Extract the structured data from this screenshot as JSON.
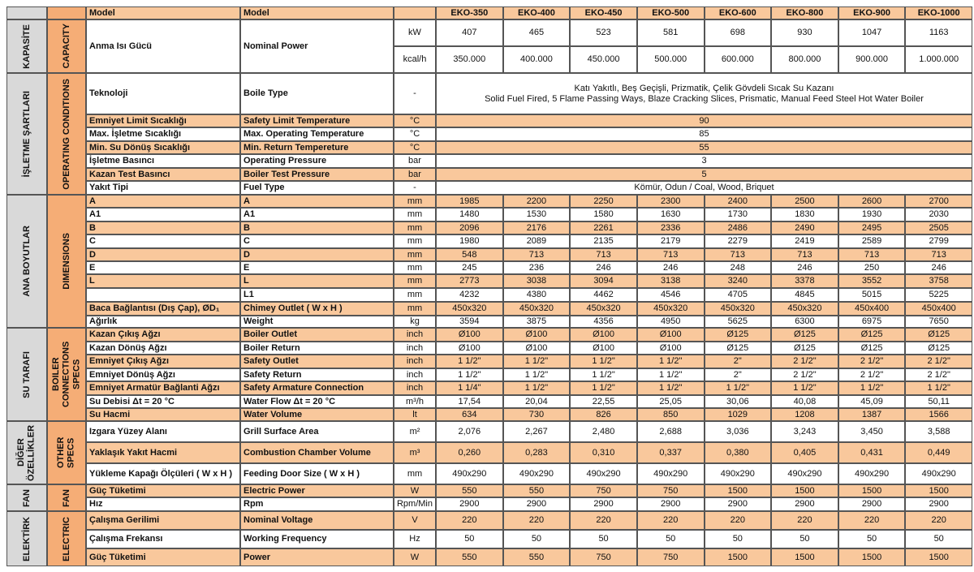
{
  "header": {
    "model_tr": "Model",
    "model_en": "Model",
    "models": [
      "EKO-350",
      "EKO-400",
      "EKO-450",
      "EKO-500",
      "EKO-600",
      "EKO-800",
      "EKO-900",
      "EKO-1000"
    ]
  },
  "groups": [
    {
      "tr": "KAPASİTE",
      "en": "CAPACITY",
      "rows": [
        {
          "tr": "Anma Isı Gücü",
          "en": "Nominal Power",
          "sub": [
            {
              "unit": "kW",
              "values": [
                407,
                465,
                523,
                581,
                698,
                930,
                1047,
                1163
              ]
            },
            {
              "unit": "kcal/h",
              "values": [
                "350.000",
                "400.000",
                "450.000",
                "500.000",
                "600.000",
                "800.000",
                "900.000",
                "1.000.000"
              ]
            }
          ]
        }
      ]
    },
    {
      "tr": "İŞLETME ŞARTLARI",
      "en": "OPERATING CONDITIONS",
      "rows": [
        {
          "tr": "Teknoloji",
          "en": "Boile Type",
          "unit": "-",
          "span": [
            "Katı Yakıtlı, Beş Geçişli, Prizmatik, Çelik Gövdeli Sıcak Su Kazanı",
            "Solid Fuel Fired, 5 Flame Passing Ways, Blaze Cracking Slices, Prismatic, Manual Feed Steel Hot Water Boiler"
          ]
        },
        {
          "tr": "Emniyet Limit Sıcaklığı",
          "en": "Safety Limit Temperature",
          "unit": "°C",
          "span": [
            90
          ]
        },
        {
          "tr": "Max. İşletme Sıcaklığı",
          "en": "Max. Operating Temperature",
          "unit": "°C",
          "span": [
            85
          ]
        },
        {
          "tr": "Min. Su Dönüş Sıcaklığı",
          "en": "Min. Return Tempereture",
          "unit": "°C",
          "span": [
            55
          ]
        },
        {
          "tr": "İşletme Basıncı",
          "en": "Operating Pressure",
          "unit": "bar",
          "span": [
            3
          ]
        },
        {
          "tr": "Kazan Test Basıncı",
          "en": "Boiler Test Pressure",
          "unit": "bar",
          "span": [
            5
          ]
        },
        {
          "tr": "Yakıt Tipi",
          "en": "Fuel Type",
          "unit": "-",
          "span": [
            "Kömür, Odun / Coal, Wood, Briquet"
          ]
        }
      ]
    },
    {
      "tr": "ANA BOYUTLAR",
      "en": "DIMENSIONS",
      "rows": [
        {
          "tr": "A",
          "en": "A",
          "unit": "mm",
          "values": [
            1985,
            2200,
            2250,
            2300,
            2400,
            2500,
            2600,
            2700
          ]
        },
        {
          "tr": "A1",
          "en": "A1",
          "unit": "mm",
          "values": [
            1480,
            1530,
            1580,
            1630,
            1730,
            1830,
            1930,
            2030
          ]
        },
        {
          "tr": "B",
          "en": "B",
          "unit": "mm",
          "values": [
            2096,
            2176,
            2261,
            2336,
            2486,
            2490,
            2495,
            2505
          ]
        },
        {
          "tr": "C",
          "en": "C",
          "unit": "mm",
          "values": [
            1980,
            2089,
            2135,
            2179,
            2279,
            2419,
            2589,
            2799
          ]
        },
        {
          "tr": "D",
          "en": "D",
          "unit": "mm",
          "values": [
            548,
            713,
            713,
            713,
            713,
            713,
            713,
            713
          ]
        },
        {
          "tr": "E",
          "en": "E",
          "unit": "mm",
          "values": [
            245,
            236,
            246,
            246,
            248,
            246,
            250,
            246
          ]
        },
        {
          "tr": "L",
          "en": "L",
          "unit": "mm",
          "values": [
            2773,
            3038,
            3094,
            3138,
            3240,
            3378,
            3552,
            3758
          ]
        },
        {
          "en": "L1",
          "unit": "mm",
          "values": [
            4232,
            4380,
            4462,
            4546,
            4705,
            4845,
            5015,
            5225
          ]
        },
        {
          "tr": "Baca Bağlantısı (Dış Çap), ØD₁",
          "en": "Chimey Outlet ( W  x H )",
          "unit": "mm",
          "values": [
            "450x320",
            "450x320",
            "450x320",
            "450x320",
            "450x320",
            "450x320",
            "450x400",
            "450x400"
          ]
        },
        {
          "tr": "Ağırlık",
          "en": "Weight",
          "unit": "kg",
          "values": [
            3594,
            3875,
            4356,
            4950,
            5625,
            6300,
            6975,
            7650
          ]
        }
      ]
    },
    {
      "tr": "SU TARAFI",
      "en": "BOILER CONNECTIONS SPECS",
      "rows": [
        {
          "tr": "Kazan Çıkış Ağzı",
          "en": "Boiler Outlet",
          "unit": "inch",
          "values": [
            "Ø100",
            "Ø100",
            "Ø100",
            "Ø100",
            "Ø125",
            "Ø125",
            "Ø125",
            "Ø125"
          ]
        },
        {
          "tr": "Kazan Dönüş Ağzı",
          "en": "Boiler Return",
          "unit": "inch",
          "values": [
            "Ø100",
            "Ø100",
            "Ø100",
            "Ø100",
            "Ø125",
            "Ø125",
            "Ø125",
            "Ø125"
          ]
        },
        {
          "tr": "Emniyet Çıkış Ağzı",
          "en": "Safety Outlet",
          "unit": "inch",
          "values": [
            "1 1/2\"",
            "1 1/2\"",
            "1 1/2\"",
            "1 1/2\"",
            "2\"",
            "2 1/2\"",
            "2 1/2\"",
            "2 1/2\""
          ]
        },
        {
          "tr": "Emniyet Dönüş Ağzı",
          "en": "Safety Return",
          "unit": "inch",
          "values": [
            "1 1/2\"",
            "1 1/2\"",
            "1 1/2\"",
            "1 1/2\"",
            "2\"",
            "2 1/2\"",
            "2 1/2\"",
            "2 1/2\""
          ]
        },
        {
          "tr": "Emniyet Armatür Bağlanti Ağzı",
          "en": "Safety Armature Connection",
          "unit": "inch",
          "values": [
            "1 1/4\"",
            "1 1/2\"",
            "1 1/2\"",
            "1 1/2\"",
            "1 1/2\"",
            "1 1/2\"",
            "1 1/2\"",
            "1 1/2\""
          ]
        },
        {
          "tr": "Su Debisi  Δt = 20 °C",
          "en": "Water Flow  Δt = 20 °C",
          "unit": "m³/h",
          "values": [
            "17,54",
            "20,04",
            "22,55",
            "25,05",
            "30,06",
            "40,08",
            "45,09",
            "50,11"
          ]
        },
        {
          "tr": "Su Hacmi",
          "en": "Water Volume",
          "unit": "lt",
          "values": [
            634,
            730,
            826,
            850,
            1029,
            1208,
            1387,
            1566
          ]
        }
      ]
    },
    {
      "tr": "DİĞER ÖZELLİKLER",
      "en": "OTHER SPECS",
      "rows": [
        {
          "tr": "Izgara Yüzey Alanı",
          "en": "Grill Surface Area",
          "unit": "m²",
          "values": [
            "2,076",
            "2,267",
            "2,480",
            "2,688",
            "3,036",
            "3,243",
            "3,450",
            "3,588"
          ]
        },
        {
          "tr": "Yaklaşık Yakıt Hacmi",
          "en": "Combustion Chamber Volume",
          "unit": "m³",
          "values": [
            "0,260",
            "0,283",
            "0,310",
            "0,337",
            "0,380",
            "0,405",
            "0,431",
            "0,449"
          ]
        },
        {
          "tr": "Yükleme Kapağı Ölçüleri  ( W  x H )",
          "en": "Feeding Door Size ( W  x H )",
          "unit": "mm",
          "values": [
            "490x290",
            "490x290",
            "490x290",
            "490x290",
            "490x290",
            "490x290",
            "490x290",
            "490x290"
          ]
        }
      ]
    },
    {
      "tr": "FAN",
      "en": "FAN",
      "rows": [
        {
          "tr": "Güç Tüketimi",
          "en": "Electric Power",
          "unit": "W",
          "values": [
            550,
            550,
            750,
            750,
            1500,
            1500,
            1500,
            1500
          ]
        },
        {
          "tr": "Hız",
          "en": "Rpm",
          "unit": "Rpm/Min",
          "values": [
            2900,
            2900,
            2900,
            2900,
            2900,
            2900,
            2900,
            2900
          ]
        }
      ]
    },
    {
      "tr": "ELEKTİRK",
      "en": "ELECTRIC",
      "rows": [
        {
          "tr": "Çalışma Gerilimi",
          "en": "Nominal Voltage",
          "unit": "V",
          "values": [
            220,
            220,
            220,
            220,
            220,
            220,
            220,
            220
          ]
        },
        {
          "tr": "Çalışma Frekansı",
          "en": "Working Frequency",
          "unit": "Hz",
          "values": [
            50,
            50,
            50,
            50,
            50,
            50,
            50,
            50
          ]
        },
        {
          "tr": "Güç Tüketimi",
          "en": "Power",
          "unit": "W",
          "values": [
            550,
            550,
            750,
            750,
            1500,
            1500,
            1500,
            1500
          ]
        }
      ]
    }
  ]
}
